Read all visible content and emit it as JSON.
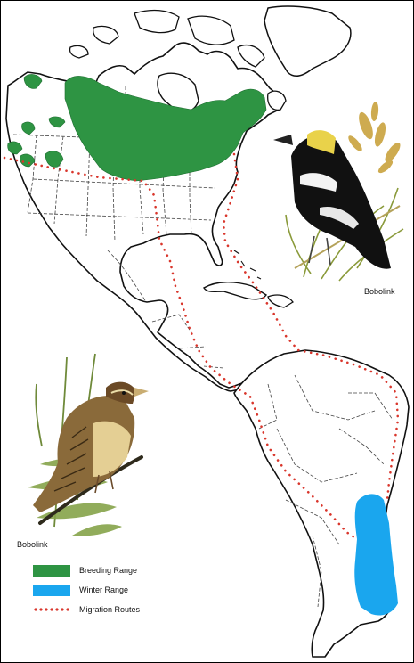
{
  "labels": {
    "bird_male": "Bobolink",
    "bird_female": "Bobolink"
  },
  "legend": [
    {
      "key": "breeding",
      "label": "Breeding Range",
      "color": "#2e9443"
    },
    {
      "key": "winter",
      "label": "Winter Range",
      "color": "#1aa6ee"
    },
    {
      "key": "migration",
      "label": "Migration Routes",
      "color": "#d9362c"
    }
  ],
  "colors": {
    "land_outline": "#111111",
    "border_line": "#444444",
    "breeding": "#2e9443",
    "winter": "#1aa6ee",
    "migration": "#d9362c",
    "background": "#ffffff"
  },
  "icons": [
    "male-bobolink-illustration",
    "female-bobolink-illustration"
  ]
}
